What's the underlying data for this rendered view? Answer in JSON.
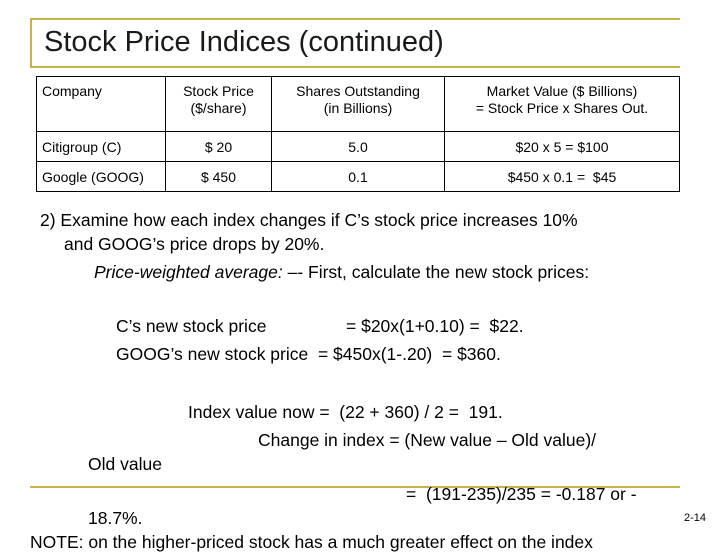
{
  "title": "Stock Price Indices (continued)",
  "table": {
    "headers": [
      "Company",
      "Stock Price\n($/share)",
      "Shares Outstanding\n(in Billions)",
      "Market Value ($ Billions)\n= Stock Price x Shares Out."
    ],
    "rows": [
      [
        "Citigroup (C)",
        "$ 20",
        "5.0",
        "$20 x 5 = $100"
      ],
      [
        "Google (GOOG)",
        "$ 450",
        "0.1",
        "$450 x 0.1 =  $45"
      ]
    ]
  },
  "question": {
    "line1": "2) Examine how each index changes if C’s stock price increases 10%",
    "line2": "and GOOG’s price drops by 20%."
  },
  "pw": {
    "label": "Price-weighted average:",
    "rest": " –- First, calculate the new stock prices:"
  },
  "calc": {
    "c_label": "C’s new stock price",
    "c_value": "= $20x(1+0.10) =  $22.",
    "goog_line": "GOOG’s new stock price  = $450x(1-.20)  = $360."
  },
  "index": {
    "now": "Index value now =  (22 + 360) / 2 =  191.",
    "change": "Change in index = (New value – Old value)/",
    "old_value": "Old value",
    "result": "=  (191-235)/235 = -0.187 or -",
    "pct": "18.7%."
  },
  "page_number": "2-14",
  "cut_text": "NOTE: on the higher-priced stock has a much greater effect on the index"
}
